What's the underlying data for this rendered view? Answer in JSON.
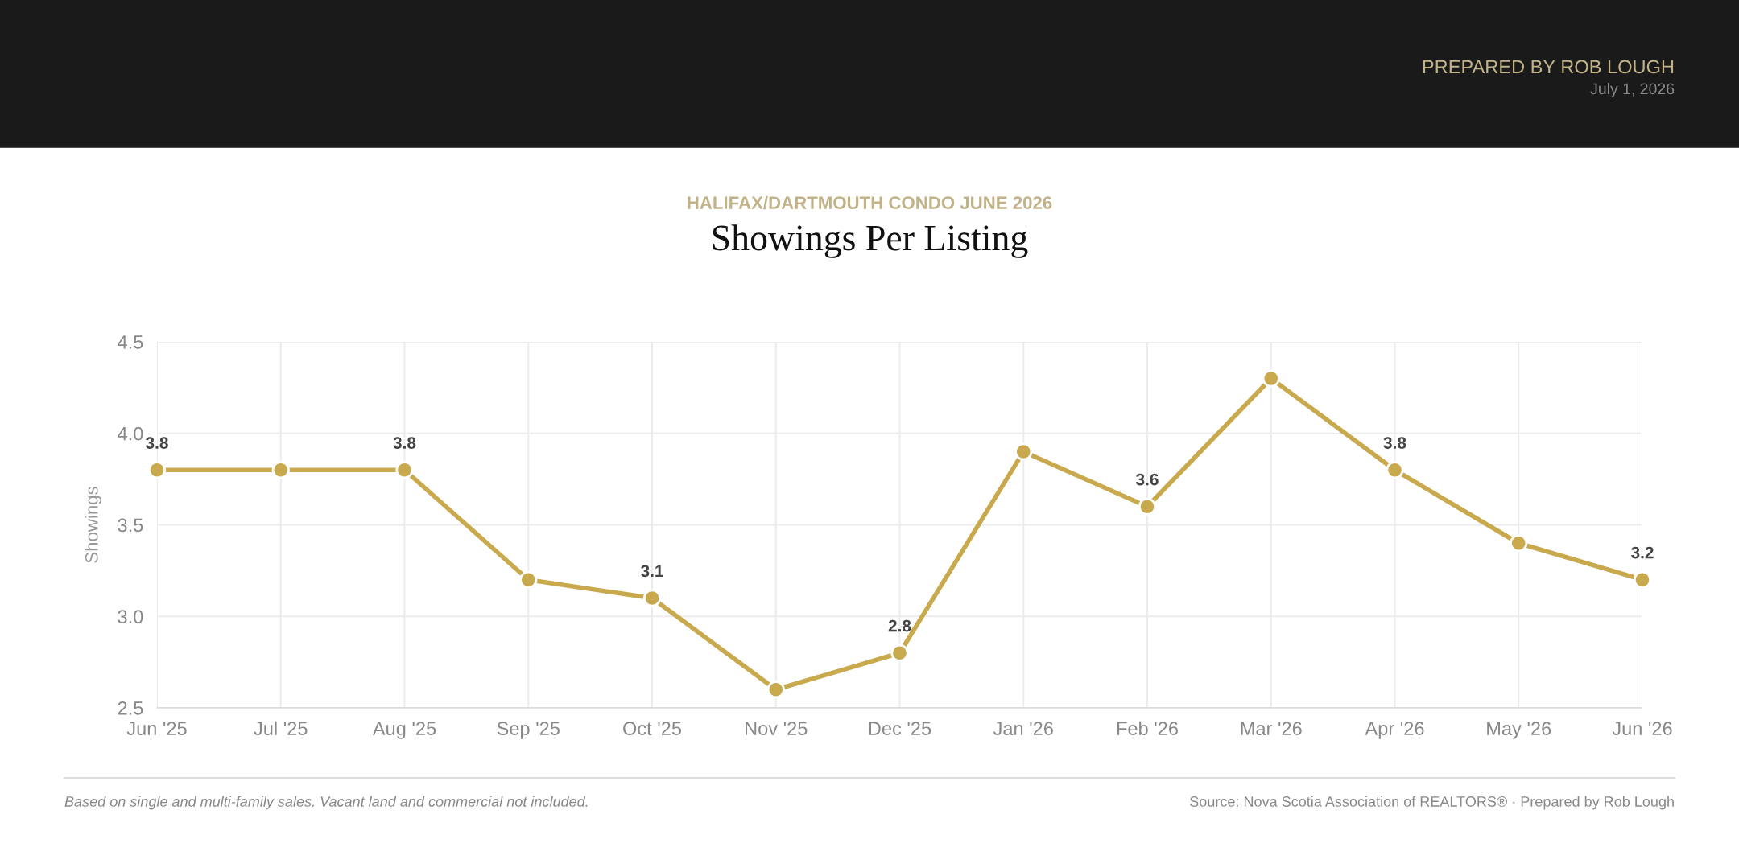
{
  "chart_data": {
    "type": "line",
    "subtitle": "HALIFAX/DARTMOUTH CONDO JUNE 2026",
    "title": "Showings Per Listing",
    "ylabel": "Showings",
    "categories": [
      "Jun '25",
      "Jul '25",
      "Aug '25",
      "Sep '25",
      "Oct '25",
      "Nov '25",
      "Dec '25",
      "Jan '26",
      "Feb '26",
      "Mar '26",
      "Apr '26",
      "May '26",
      "Jun '26"
    ],
    "series": [
      {
        "color": "#c9a94d",
        "values": [
          3.8,
          3.8,
          3.8,
          3.2,
          3.1,
          2.6,
          2.8,
          3.9,
          3.6,
          4.3,
          3.8,
          3.4,
          3.2
        ],
        "value_labels": [
          "3.8",
          null,
          "3.8",
          null,
          "3.1",
          null,
          "2.8",
          null,
          "3.6",
          null,
          "3.8",
          null,
          "3.2"
        ]
      }
    ],
    "ylim": [
      2.5,
      4.5
    ],
    "yticks": [
      {
        "value": 2.5,
        "label": "2.5"
      },
      {
        "value": 3,
        "label": "3.0"
      },
      {
        "value": 3.5,
        "label": "3.5"
      },
      {
        "value": 4,
        "label": "4.0"
      },
      {
        "value": 4.5,
        "label": "4.5"
      }
    ],
    "grid": true,
    "marker": "circle",
    "line_style": "solid",
    "legend": false,
    "annotations": [
      "PREPARED BY ROB LOUGH",
      "July 1, 2026",
      "Based on single and multi-family sales. Vacant land and commercial not included.",
      "Source: Nova Scotia Association of REALTORS® · Prepared by Rob Lough"
    ]
  }
}
